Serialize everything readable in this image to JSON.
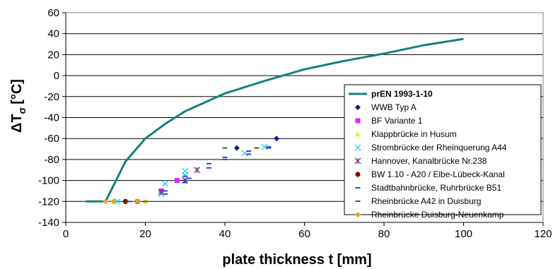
{
  "chart_data": {
    "type": "scatter",
    "xlabel": "plate thickness t [mm]",
    "ylabel_main": "ΔT",
    "ylabel_sub": "σ",
    "ylabel_unit": "[°C]",
    "xlim": [
      0,
      120
    ],
    "ylim": [
      -140,
      60
    ],
    "xticks": [
      0,
      20,
      40,
      60,
      80,
      100,
      120
    ],
    "yticks": [
      -140,
      -120,
      -100,
      -80,
      -60,
      -40,
      -20,
      0,
      20,
      40,
      60
    ],
    "grid": {
      "horizontal": true,
      "vertical": false
    },
    "legend_position": "right",
    "series": [
      {
        "name": "prEN 1993-1-10",
        "kind": "line",
        "color": "#158080",
        "points": [
          [
            5,
            -120
          ],
          [
            10,
            -120
          ],
          [
            15,
            -82
          ],
          [
            20,
            -60
          ],
          [
            25,
            -46
          ],
          [
            30,
            -34
          ],
          [
            40,
            -17
          ],
          [
            50,
            -5
          ],
          [
            60,
            6
          ],
          [
            70,
            14
          ],
          [
            80,
            21
          ],
          [
            90,
            29
          ],
          [
            100,
            35
          ]
        ]
      },
      {
        "name": "WWB Typ A",
        "kind": "marker",
        "marker": "diamond",
        "color": "#1a1a8c",
        "points": [
          [
            15,
            -120
          ],
          [
            43,
            -69
          ],
          [
            53,
            -60
          ]
        ]
      },
      {
        "name": "BF Variante 1",
        "kind": "marker",
        "marker": "square",
        "color": "#ee22ee",
        "points": [
          [
            24,
            -110
          ],
          [
            28,
            -100
          ]
        ]
      },
      {
        "name": "Klappbrücke in Husum",
        "kind": "marker",
        "marker": "triangle",
        "color": "#f2ee00",
        "points": [
          [
            12,
            -120
          ],
          [
            20,
            -120
          ]
        ]
      },
      {
        "name": "Strombrücke der Rheinquerung A44",
        "kind": "marker",
        "marker": "x",
        "color": "#33d6ee",
        "points": [
          [
            13,
            -120
          ],
          [
            24,
            -113
          ],
          [
            25,
            -103
          ],
          [
            30,
            -91
          ],
          [
            30,
            -95
          ],
          [
            45,
            -74
          ],
          [
            50,
            -68
          ]
        ]
      },
      {
        "name": "Hannover, Kanalbrücke Nr.238",
        "kind": "marker",
        "marker": "star",
        "color": "#7a2f7a",
        "points": [
          [
            24,
            -111
          ],
          [
            30,
            -100
          ],
          [
            33,
            -90
          ]
        ]
      },
      {
        "name": "BW 1.10 - A20 / Elbe-Lübeck-Kanal",
        "kind": "marker",
        "marker": "circle",
        "color": "#7a1010",
        "points": [
          [
            15,
            -120
          ],
          [
            18,
            -120
          ]
        ]
      },
      {
        "name": "Stadtbahnbrücke, Ruhrbrücke B51",
        "kind": "marker",
        "marker": "dash",
        "color": "#2a4ad0",
        "points": [
          [
            12,
            -120
          ],
          [
            16,
            -120
          ],
          [
            20,
            -120
          ],
          [
            25,
            -110
          ],
          [
            25,
            -113
          ],
          [
            30,
            -96
          ],
          [
            30,
            -102
          ],
          [
            31,
            -98
          ],
          [
            36,
            -84
          ],
          [
            36,
            -88
          ],
          [
            40,
            -78
          ],
          [
            40,
            -80
          ],
          [
            46,
            -72
          ],
          [
            46,
            -75
          ],
          [
            51,
            -68
          ],
          [
            51,
            -69
          ]
        ]
      },
      {
        "name": "Rheinbrücke A42 in Duisburg",
        "kind": "marker",
        "marker": "dash",
        "color": "#1a7a1a",
        "points": [
          [
            40,
            -69
          ],
          [
            48,
            -69
          ]
        ]
      },
      {
        "name": "Rheinbrücke Duisburg-Neuenkamp",
        "kind": "marker",
        "marker": "diamond",
        "color": "#f0a020",
        "points": [
          [
            10,
            -120
          ],
          [
            12,
            -120
          ],
          [
            18,
            -120
          ]
        ]
      }
    ]
  }
}
